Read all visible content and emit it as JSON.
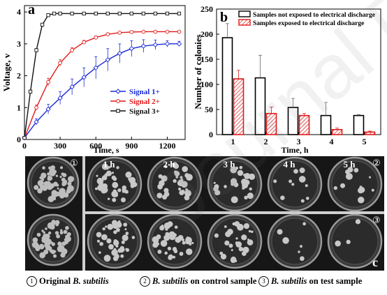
{
  "chart_data": [
    {
      "panel_label": "a",
      "type": "line",
      "xlabel": "Time, s",
      "ylabel": "Voltage, v",
      "xlim": [
        0,
        1350
      ],
      "ylim": [
        0,
        4.2
      ],
      "xticks": [
        0,
        300,
        600,
        900,
        1200
      ],
      "yticks": [
        0,
        1,
        2,
        3,
        4
      ],
      "legend_position": "right-middle",
      "series": [
        {
          "name": "Signal 1+",
          "color": "#1a2bd6",
          "marker": "diamond",
          "x": [
            0,
            100,
            200,
            300,
            400,
            500,
            600,
            700,
            800,
            900,
            1000,
            1100,
            1200,
            1300
          ],
          "y": [
            0.05,
            0.55,
            0.95,
            1.3,
            1.65,
            1.95,
            2.25,
            2.5,
            2.7,
            2.85,
            2.93,
            2.97,
            3.0,
            3.0
          ],
          "err": [
            0.05,
            0.1,
            0.15,
            0.2,
            0.25,
            0.3,
            0.35,
            0.35,
            0.3,
            0.25,
            0.2,
            0.15,
            0.1,
            0.08
          ]
        },
        {
          "name": "Signal 2+",
          "color": "#e01a1a",
          "marker": "circle",
          "x": [
            0,
            100,
            200,
            300,
            400,
            500,
            600,
            700,
            800,
            900,
            1000,
            1100,
            1200,
            1300
          ],
          "y": [
            0.05,
            1.0,
            1.8,
            2.4,
            2.8,
            3.05,
            3.2,
            3.3,
            3.35,
            3.37,
            3.38,
            3.38,
            3.38,
            3.38
          ],
          "err": [
            0.03,
            0.08,
            0.12,
            0.1,
            0.08,
            0.06,
            0.05,
            0.04,
            0.03,
            0.03,
            0.03,
            0.03,
            0.03,
            0.03
          ]
        },
        {
          "name": "Signal 3+",
          "color": "#111111",
          "marker": "square",
          "x": [
            0,
            50,
            100,
            150,
            200,
            250,
            300,
            400,
            500,
            600,
            700,
            800,
            900,
            1000,
            1100,
            1200,
            1300
          ],
          "y": [
            0.05,
            1.5,
            2.8,
            3.6,
            3.9,
            3.95,
            3.95,
            3.95,
            3.95,
            3.95,
            3.95,
            3.95,
            3.95,
            3.95,
            3.95,
            3.95,
            3.95
          ],
          "err": [
            0.02,
            0.05,
            0.05,
            0.04,
            0.03,
            0.02,
            0.02,
            0.02,
            0.02,
            0.02,
            0.02,
            0.02,
            0.02,
            0.02,
            0.02,
            0.02,
            0.02
          ]
        }
      ]
    },
    {
      "panel_label": "b",
      "type": "bar",
      "xlabel": "Time, h",
      "ylabel": "Number of colonies",
      "ylim": [
        0,
        250
      ],
      "yticks": [
        0,
        50,
        100,
        150,
        200,
        250
      ],
      "categories": [
        "1",
        "2",
        "3",
        "4",
        "5"
      ],
      "legend_position": "top",
      "series": [
        {
          "name": "Samples not exposed to electrical discharge",
          "color": "#000000",
          "fill": "none",
          "values": [
            193,
            113,
            54,
            38,
            38
          ],
          "err": [
            28,
            45,
            18,
            26,
            2
          ]
        },
        {
          "name": "Samples exposed to electrical discharge",
          "color": "#e01a1a",
          "fill": "hatch",
          "values": [
            111,
            42,
            38,
            10,
            5
          ],
          "err": [
            17,
            13,
            4,
            3,
            2
          ]
        }
      ]
    }
  ],
  "photo_panel": {
    "time_labels": [
      "1 h",
      "2 h",
      "3 h",
      "4 h",
      "5 h"
    ],
    "group_marks": [
      "①",
      "②",
      "③"
    ],
    "panel_label": "c"
  },
  "caption": [
    {
      "mark": "1",
      "text_a": "Original",
      "species": "B. subtilis",
      "text_b": ""
    },
    {
      "mark": "2",
      "text_a": "",
      "species": "B. subtilis",
      "text_b": "on control sample"
    },
    {
      "mark": "3",
      "text_a": "",
      "species": "B. subtilis",
      "text_b": "on test sample"
    }
  ],
  "watermark": "Journal Pre-proof"
}
